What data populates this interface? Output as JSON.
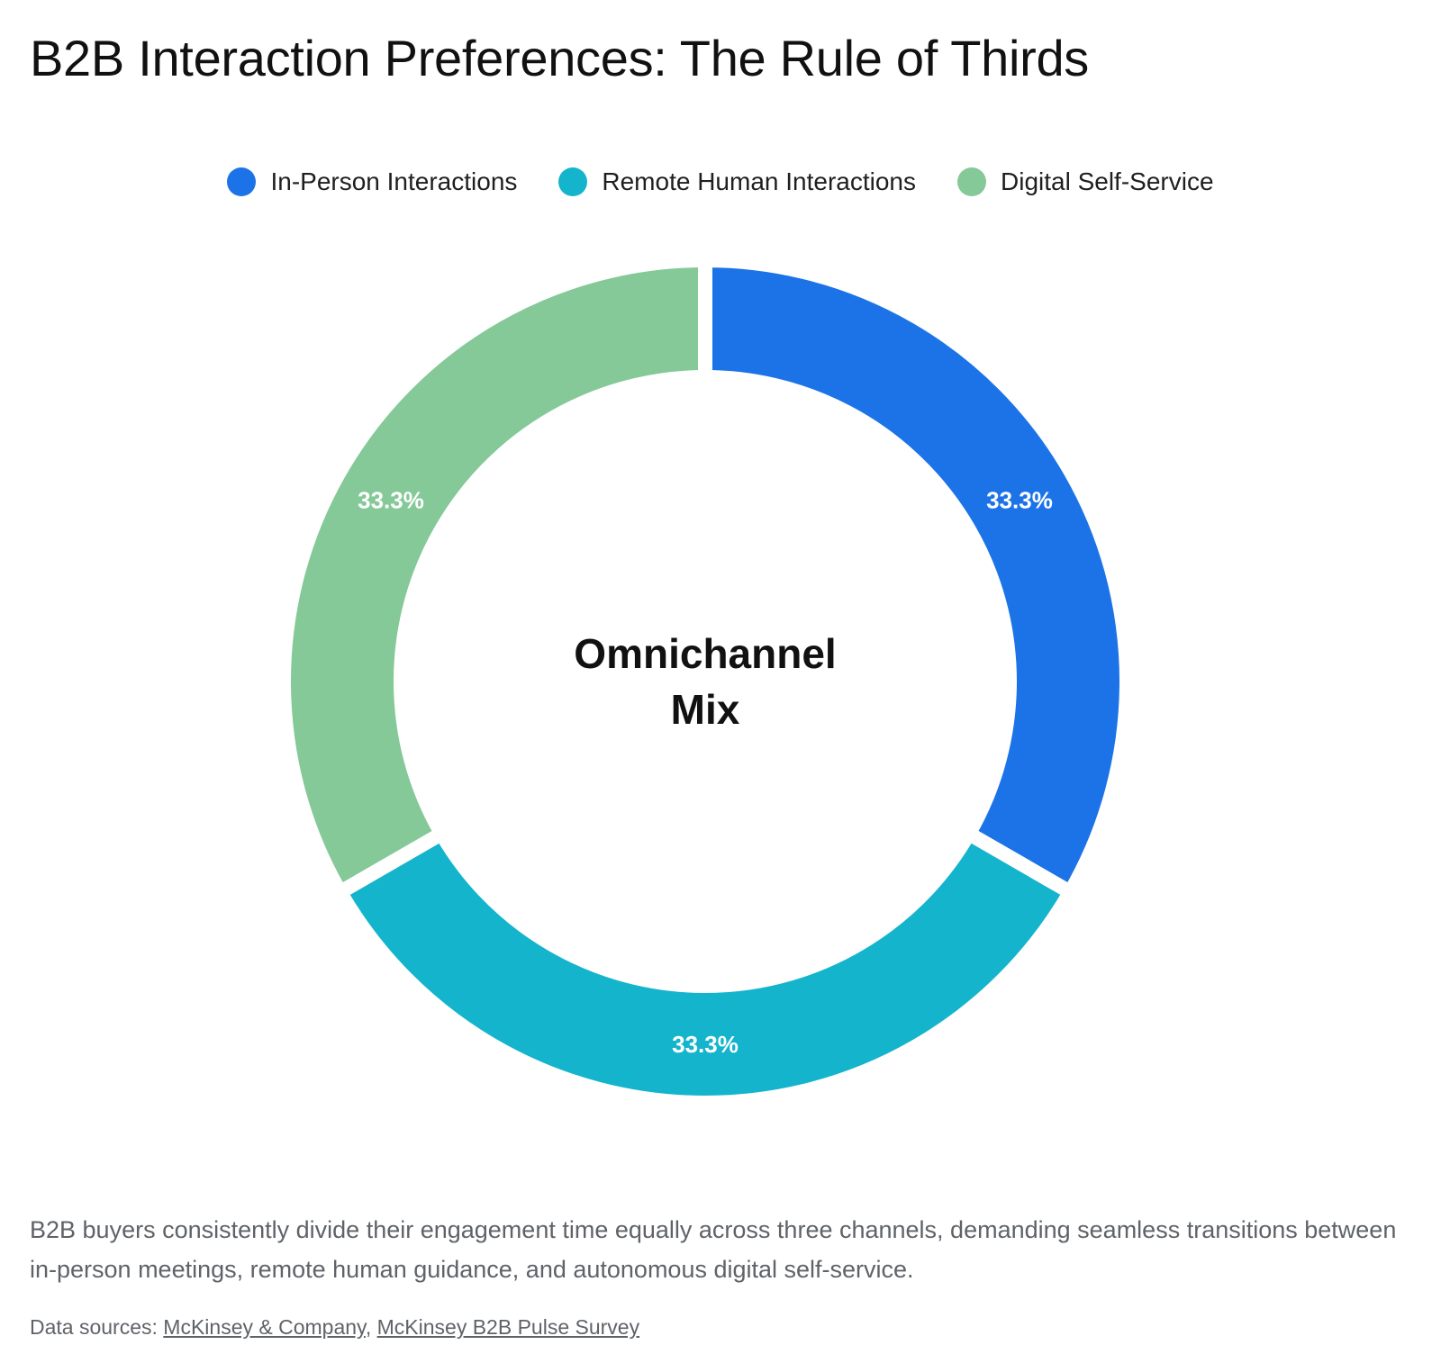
{
  "title": "B2B Interaction Preferences: The Rule of Thirds",
  "chart_data": {
    "type": "pie",
    "variant": "donut",
    "center_label": [
      "Omnichannel",
      "Mix"
    ],
    "legend_position": "top-center",
    "slices": [
      {
        "name": "In-Person Interactions",
        "value": 33.3,
        "label": "33.3%",
        "color": "#1c73e8"
      },
      {
        "name": "Remote Human Interactions",
        "value": 33.3,
        "label": "33.3%",
        "color": "#14b4cc"
      },
      {
        "name": "Digital Self-Service",
        "value": 33.3,
        "label": "33.3%",
        "color": "#84c997"
      }
    ]
  },
  "description": "B2B buyers consistently divide their engagement time equally across three channels, demanding seamless transitions between in-person meetings, remote human guidance, and autonomous digital self-service.",
  "sources": {
    "prefix": "Data sources:",
    "links": [
      "McKinsey & Company",
      "McKinsey B2B Pulse Survey"
    ],
    "separator": ","
  }
}
